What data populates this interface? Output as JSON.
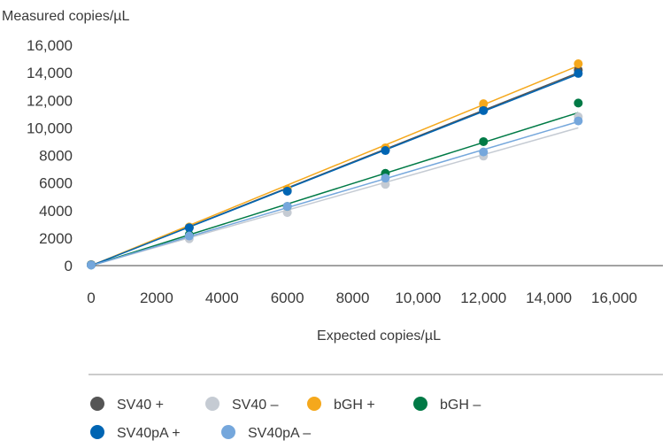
{
  "chart_data": {
    "type": "scatter",
    "xlabel": "Expected copies/µL",
    "ylabel": "Measured copies/µL",
    "xlim": [
      0,
      16000
    ],
    "ylim": [
      0,
      16000
    ],
    "x_ticks": [
      0,
      2000,
      4000,
      6000,
      8000,
      10000,
      12000,
      14000,
      16000
    ],
    "y_ticks": [
      0,
      2000,
      4000,
      6000,
      8000,
      10000,
      12000,
      14000,
      16000
    ],
    "x_tick_labels": [
      "0",
      "2000",
      "4000",
      "6000",
      "8000",
      "10,000",
      "12,000",
      "14,000",
      "16,000"
    ],
    "y_tick_labels": [
      "0",
      "2000",
      "4000",
      "6000",
      "8000",
      "10,000",
      "12,000",
      "14,000",
      "16,000"
    ],
    "grid": false,
    "legend_position": "bottom",
    "x": [
      0,
      3000,
      6000,
      9000,
      12000,
      14900
    ],
    "series": [
      {
        "name": "SV40 +",
        "color": "#555555",
        "values": [
          60,
          2750,
          5450,
          8400,
          11300,
          14200
        ],
        "trend": [
          0,
          14000
        ]
      },
      {
        "name": "SV40 –",
        "color": "#c5cbd3",
        "values": [
          40,
          1950,
          3850,
          5900,
          7950,
          10800
        ],
        "trend": [
          0,
          10000
        ]
      },
      {
        "name": "bGH +",
        "color": "#f5a81c",
        "values": [
          70,
          2800,
          5550,
          8550,
          11750,
          14650
        ],
        "trend": [
          0,
          14500
        ]
      },
      {
        "name": "bGH –",
        "color": "#007a46",
        "values": [
          50,
          2250,
          4300,
          6700,
          9000,
          11800
        ],
        "trend": [
          0,
          11100
        ]
      },
      {
        "name": "SV40pA +",
        "color": "#0065b3",
        "values": [
          60,
          2750,
          5400,
          8350,
          11250,
          13950
        ],
        "trend": [
          0,
          13900
        ]
      },
      {
        "name": "SV40pA –",
        "color": "#75a7dc",
        "values": [
          40,
          2150,
          4300,
          6350,
          8250,
          10500
        ],
        "trend": [
          0,
          10450
        ]
      }
    ]
  }
}
